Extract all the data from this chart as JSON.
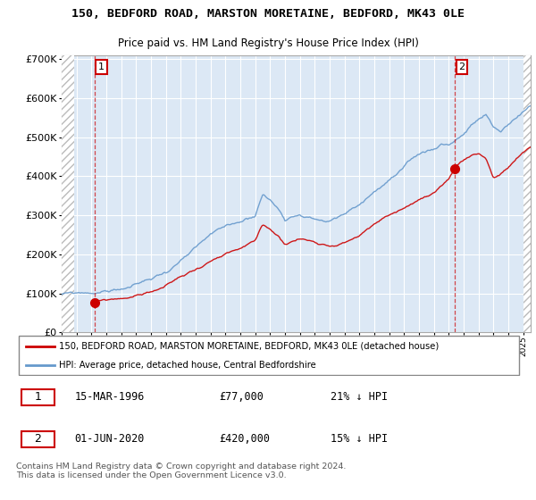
{
  "title": "150, BEDFORD ROAD, MARSTON MORETAINE, BEDFORD, MK43 0LE",
  "subtitle": "Price paid vs. HM Land Registry's House Price Index (HPI)",
  "yticks": [
    0,
    100000,
    200000,
    300000,
    400000,
    500000,
    600000,
    700000
  ],
  "ytick_labels": [
    "£0",
    "£100K",
    "£200K",
    "£300K",
    "£400K",
    "£500K",
    "£600K",
    "£700K"
  ],
  "xlim": [
    1994.0,
    2025.5
  ],
  "ylim": [
    0,
    710000
  ],
  "plot_bg": "#dce8f5",
  "transaction1_year": 1996.21,
  "transaction1_price": 77000,
  "transaction2_year": 2020.42,
  "transaction2_price": 420000,
  "legend_line1": "150, BEDFORD ROAD, MARSTON MORETAINE, BEDFORD, MK43 0LE (detached house)",
  "legend_line2": "HPI: Average price, detached house, Central Bedfordshire",
  "note1_date": "15-MAR-1996",
  "note1_price": "£77,000",
  "note1_hpi": "21% ↓ HPI",
  "note2_date": "01-JUN-2020",
  "note2_price": "£420,000",
  "note2_hpi": "15% ↓ HPI",
  "footer": "Contains HM Land Registry data © Crown copyright and database right 2024.\nThis data is licensed under the Open Government Licence v3.0.",
  "red_color": "#cc0000",
  "blue_color": "#6699cc",
  "hatch_color": "#bbbbbb"
}
